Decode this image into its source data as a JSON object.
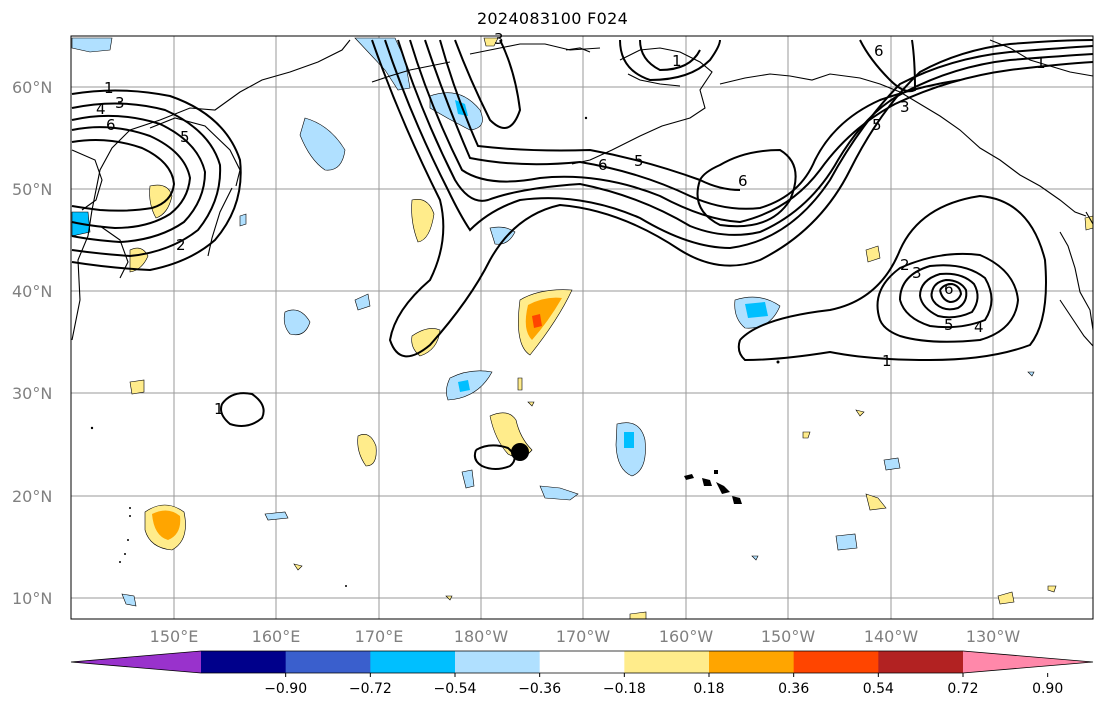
{
  "title": "2024083100 F024",
  "lat_labels": [
    "10°N",
    "20°N",
    "30°N",
    "40°N",
    "50°N",
    "60°N"
  ],
  "lon_labels": [
    "150°E",
    "160°E",
    "170°E",
    "180°W",
    "170°W",
    "160°W",
    "150°W",
    "140°W",
    "130°W"
  ],
  "colorbar": {
    "labels": [
      "−0.90",
      "−0.72",
      "−0.54",
      "−0.36",
      "−0.18",
      "0.18",
      "0.36",
      "0.54",
      "0.72",
      "0.90"
    ],
    "colors": [
      "#9932cc",
      "#00008b",
      "#3a5fcd",
      "#00bfff",
      "#b0e0ff",
      "#ffffff",
      "#ffec8b",
      "#ffa500",
      "#ff4500",
      "#b22222",
      "#ff88aa"
    ]
  },
  "contour_labels": [
    {
      "text": "1"
    },
    {
      "text": "3"
    },
    {
      "text": "4"
    },
    {
      "text": "6"
    },
    {
      "text": "5"
    },
    {
      "text": "2"
    },
    {
      "text": "3"
    },
    {
      "text": "6"
    },
    {
      "text": "5"
    },
    {
      "text": "1"
    },
    {
      "text": "6"
    },
    {
      "text": "5"
    },
    {
      "text": "3"
    },
    {
      "text": "6"
    },
    {
      "text": "2"
    },
    {
      "text": "3"
    },
    {
      "text": "6"
    },
    {
      "text": "5"
    },
    {
      "text": "4"
    },
    {
      "text": "1"
    },
    {
      "text": "1"
    },
    {
      "text": "1"
    }
  ],
  "marker": {
    "name": "storm-center"
  }
}
